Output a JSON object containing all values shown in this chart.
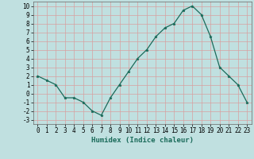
{
  "x": [
    0,
    1,
    2,
    3,
    4,
    5,
    6,
    7,
    8,
    9,
    10,
    11,
    12,
    13,
    14,
    15,
    16,
    17,
    18,
    19,
    20,
    21,
    22,
    23
  ],
  "y": [
    2,
    1.5,
    1,
    -0.5,
    -0.5,
    -1,
    -2,
    -2.5,
    -0.5,
    1,
    2.5,
    4,
    5,
    6.5,
    7.5,
    8,
    9.5,
    10,
    9,
    6.5,
    3,
    2,
    1,
    -1
  ],
  "xlabel": "Humidex (Indice chaleur)",
  "xlim": [
    -0.5,
    23.5
  ],
  "ylim": [
    -3.5,
    10.5
  ],
  "xticks": [
    0,
    1,
    2,
    3,
    4,
    5,
    6,
    7,
    8,
    9,
    10,
    11,
    12,
    13,
    14,
    15,
    16,
    17,
    18,
    19,
    20,
    21,
    22,
    23
  ],
  "yticks": [
    -3,
    -2,
    -1,
    0,
    1,
    2,
    3,
    4,
    5,
    6,
    7,
    8,
    9,
    10
  ],
  "line_color": "#1a6b5a",
  "bg_color": "#c0e0e0",
  "grid_color": "#d8a0a0",
  "tick_fontsize": 5.5,
  "label_fontsize": 6.5
}
